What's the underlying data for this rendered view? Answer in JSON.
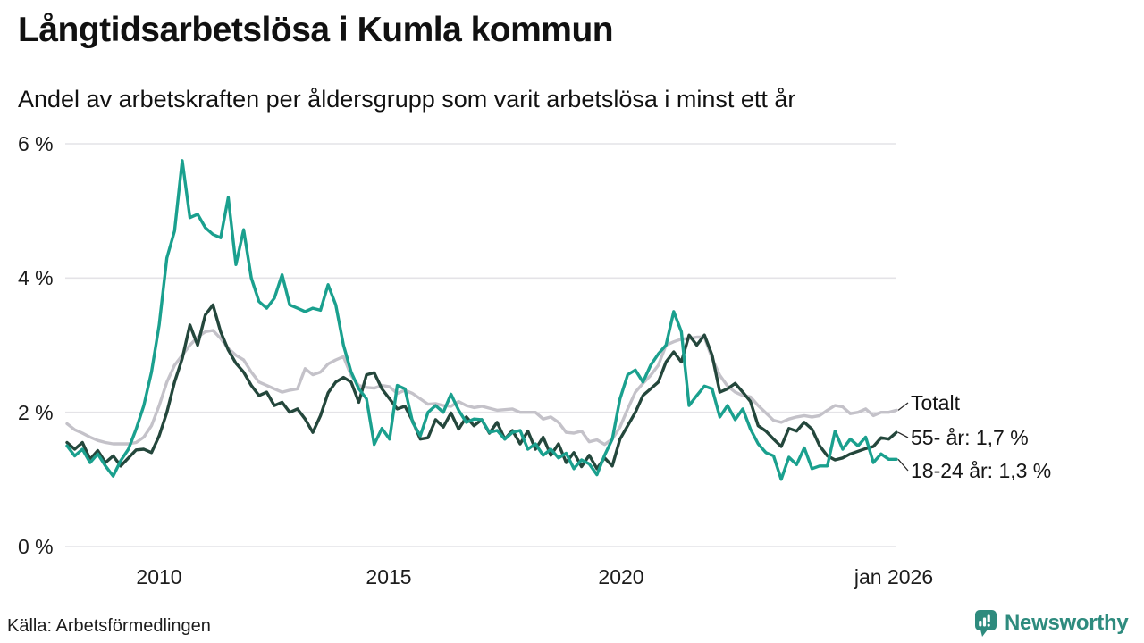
{
  "header": {
    "title": "Långtidsarbetslösa i Kumla kommun",
    "subtitle": "Andel av arbetskraften per åldersgrupp som varit arbetslösa i minst ett år"
  },
  "footer": {
    "source": "Källa: Arbetsförmedlingen",
    "brand": "Newsworthy"
  },
  "colors": {
    "teal_line": "#1aa08e",
    "dark_green_line": "#24473c",
    "gray_line": "#c4c2c9",
    "grid": "#e4e3e7",
    "brand_teal": "#2e8b7e",
    "text": "#1a1a1a"
  },
  "chart_data": {
    "type": "line",
    "title": "Långtidsarbetslösa i Kumla kommun",
    "subtitle": "Andel av arbetskraften per åldersgrupp som varit arbetslösa i minst ett år",
    "source": "Källa: Arbetsförmedlingen",
    "grid": true,
    "grid_color": "#e4e3e7",
    "legend_position": "right-end-labels",
    "xlim": [
      2008,
      2026
    ],
    "ylim": [
      0,
      6
    ],
    "x_unit": "year (monthly data shown, sampled bimonthly here)",
    "x_start": 2008,
    "x_step": 0.1666667,
    "x_ticks": [
      {
        "year": 2010,
        "label": "2010"
      },
      {
        "year": 2015,
        "label": "2015"
      },
      {
        "year": 2020,
        "label": "2020"
      },
      {
        "year": 2026,
        "label": "jan 2026"
      }
    ],
    "y_ticks": [
      {
        "value": 0,
        "label": "0 %"
      },
      {
        "value": 2,
        "label": "2 %"
      },
      {
        "value": 4,
        "label": "4 %"
      },
      {
        "value": 6,
        "label": "6 %"
      }
    ],
    "series": [
      {
        "id": "totalt",
        "name": "Totalt",
        "end_label": "Totalt",
        "color": "#c4c2c9",
        "values": [
          1.83,
          1.74,
          1.69,
          1.63,
          1.58,
          1.55,
          1.53,
          1.53,
          1.53,
          1.55,
          1.63,
          1.8,
          2.1,
          2.45,
          2.7,
          2.85,
          3.0,
          3.12,
          3.2,
          3.22,
          3.1,
          2.95,
          2.85,
          2.78,
          2.6,
          2.45,
          2.4,
          2.35,
          2.3,
          2.33,
          2.35,
          2.65,
          2.56,
          2.6,
          2.72,
          2.78,
          2.83,
          2.55,
          2.4,
          2.37,
          2.36,
          2.4,
          2.38,
          2.28,
          2.33,
          2.28,
          2.2,
          2.12,
          2.13,
          2.1,
          2.09,
          2.16,
          2.1,
          2.07,
          2.09,
          2.06,
          2.03,
          2.04,
          2.05,
          2.0,
          2.0,
          2.0,
          1.9,
          1.93,
          1.85,
          1.7,
          1.69,
          1.72,
          1.56,
          1.59,
          1.52,
          1.6,
          1.78,
          2.05,
          2.3,
          2.43,
          2.55,
          2.7,
          3.0,
          3.05,
          3.09,
          3.1,
          3.12,
          3.12,
          2.8,
          2.55,
          2.39,
          2.3,
          2.25,
          2.23,
          2.1,
          1.99,
          1.88,
          1.85,
          1.9,
          1.93,
          1.95,
          1.93,
          1.95,
          2.03,
          2.1,
          2.08,
          1.98,
          2.0,
          2.05,
          1.95,
          2.0,
          2.0,
          2.03
        ]
      },
      {
        "id": "55-ar",
        "name": "55- år",
        "end_label": "55- år: 1,7 %",
        "latest_value": "1,7 %",
        "color": "#24473c",
        "values": [
          1.55,
          1.45,
          1.55,
          1.3,
          1.43,
          1.25,
          1.35,
          1.2,
          1.32,
          1.44,
          1.45,
          1.4,
          1.65,
          2.0,
          2.45,
          2.8,
          3.3,
          3.0,
          3.45,
          3.6,
          3.2,
          2.93,
          2.73,
          2.6,
          2.4,
          2.25,
          2.3,
          2.1,
          2.15,
          2.0,
          2.05,
          1.9,
          1.7,
          1.95,
          2.29,
          2.45,
          2.52,
          2.45,
          2.15,
          2.56,
          2.59,
          2.35,
          2.2,
          2.05,
          2.09,
          1.87,
          1.6,
          1.62,
          1.89,
          1.78,
          1.99,
          1.75,
          1.93,
          1.8,
          1.89,
          1.69,
          1.85,
          1.6,
          1.73,
          1.53,
          1.72,
          1.45,
          1.63,
          1.36,
          1.53,
          1.25,
          1.4,
          1.19,
          1.36,
          1.16,
          1.32,
          1.2,
          1.6,
          1.8,
          2.0,
          2.25,
          2.35,
          2.45,
          2.75,
          2.9,
          2.75,
          3.15,
          3.0,
          3.15,
          2.85,
          2.3,
          2.35,
          2.43,
          2.3,
          2.16,
          1.8,
          1.72,
          1.6,
          1.49,
          1.76,
          1.72,
          1.85,
          1.75,
          1.5,
          1.35,
          1.29,
          1.32,
          1.38,
          1.42,
          1.46,
          1.49,
          1.62,
          1.6,
          1.7
        ]
      },
      {
        "id": "18-24-ar",
        "name": "18-24 år",
        "end_label": "18-24 år: 1,3 %",
        "latest_value": "1,3 %",
        "color": "#1aa08e",
        "values": [
          1.5,
          1.35,
          1.45,
          1.25,
          1.38,
          1.2,
          1.05,
          1.28,
          1.45,
          1.75,
          2.1,
          2.6,
          3.3,
          4.3,
          4.7,
          5.75,
          4.9,
          4.95,
          4.75,
          4.65,
          4.6,
          5.2,
          4.2,
          4.72,
          4.0,
          3.65,
          3.55,
          3.7,
          4.05,
          3.6,
          3.55,
          3.5,
          3.55,
          3.52,
          3.9,
          3.6,
          3.0,
          2.6,
          2.35,
          2.2,
          1.52,
          1.76,
          1.6,
          2.4,
          2.35,
          1.85,
          1.65,
          2.0,
          2.1,
          2.0,
          2.27,
          2.03,
          1.85,
          1.9,
          1.89,
          1.7,
          1.73,
          1.6,
          1.7,
          1.73,
          1.45,
          1.53,
          1.36,
          1.45,
          1.32,
          1.39,
          1.16,
          1.29,
          1.23,
          1.07,
          1.36,
          1.6,
          2.2,
          2.56,
          2.63,
          2.45,
          2.7,
          2.87,
          3.0,
          3.5,
          3.2,
          2.1,
          2.25,
          2.39,
          2.35,
          1.93,
          2.1,
          1.89,
          2.05,
          1.75,
          1.53,
          1.4,
          1.35,
          1.0,
          1.33,
          1.22,
          1.47,
          1.16,
          1.2,
          1.2,
          1.72,
          1.45,
          1.6,
          1.5,
          1.63,
          1.25,
          1.38,
          1.3,
          1.3
        ]
      }
    ]
  }
}
